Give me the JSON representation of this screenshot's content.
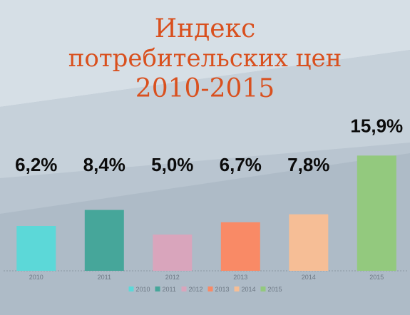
{
  "title": {
    "line1": "Индекс",
    "line2": "потребительских цен",
    "line3": "2010-2015",
    "color": "#d9501e"
  },
  "chart_data": {
    "type": "bar",
    "categories": [
      "2010",
      "2011",
      "2012",
      "2013",
      "2014",
      "2015"
    ],
    "values": [
      6.2,
      8.4,
      5.0,
      6.7,
      7.8,
      15.9
    ],
    "data_labels": [
      "6,2%",
      "8,4%",
      "5,0%",
      "6,7%",
      "7,8%",
      "15,9%"
    ],
    "colors": [
      "#5cd8d8",
      "#46a69a",
      "#d9a5bc",
      "#f98a66",
      "#f6be96",
      "#93c97e"
    ],
    "legend": [
      "2010",
      "2011",
      "2012",
      "2013",
      "2014",
      "2015"
    ],
    "legend_position": "bottom",
    "ylim": [
      0,
      18
    ],
    "grid": false,
    "xlabel": "",
    "ylabel": ""
  }
}
